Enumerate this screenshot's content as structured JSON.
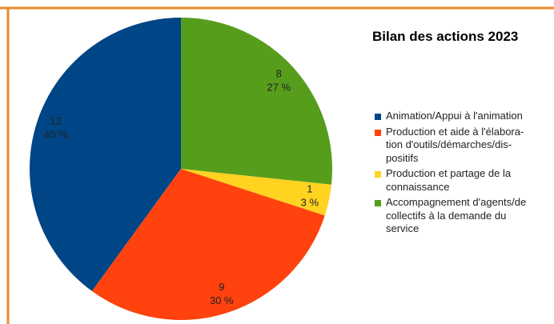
{
  "chart_data": {
    "type": "pie",
    "title": "Bilan des actions 2023",
    "series": [
      {
        "name": "Animation/Appui à l'animation",
        "color": "#004586"
      },
      {
        "name": "Production et aide à l'élabora-\ntion d'outils/démarches/dis-\npositifs",
        "color": "#ff420e"
      },
      {
        "name": "Production et partage de la\nconnaissance",
        "color": "#ffd320"
      },
      {
        "name": "Accompagnement d'agents/de\ncollectifs à la demande du\nservice",
        "color": "#579d1c"
      }
    ],
    "values": [
      12,
      9,
      1,
      8
    ],
    "percentages": [
      40,
      30,
      3,
      27
    ],
    "percentage_labels": [
      "40 %",
      "30 %",
      "3 %",
      "27 %"
    ],
    "legend": "right"
  }
}
